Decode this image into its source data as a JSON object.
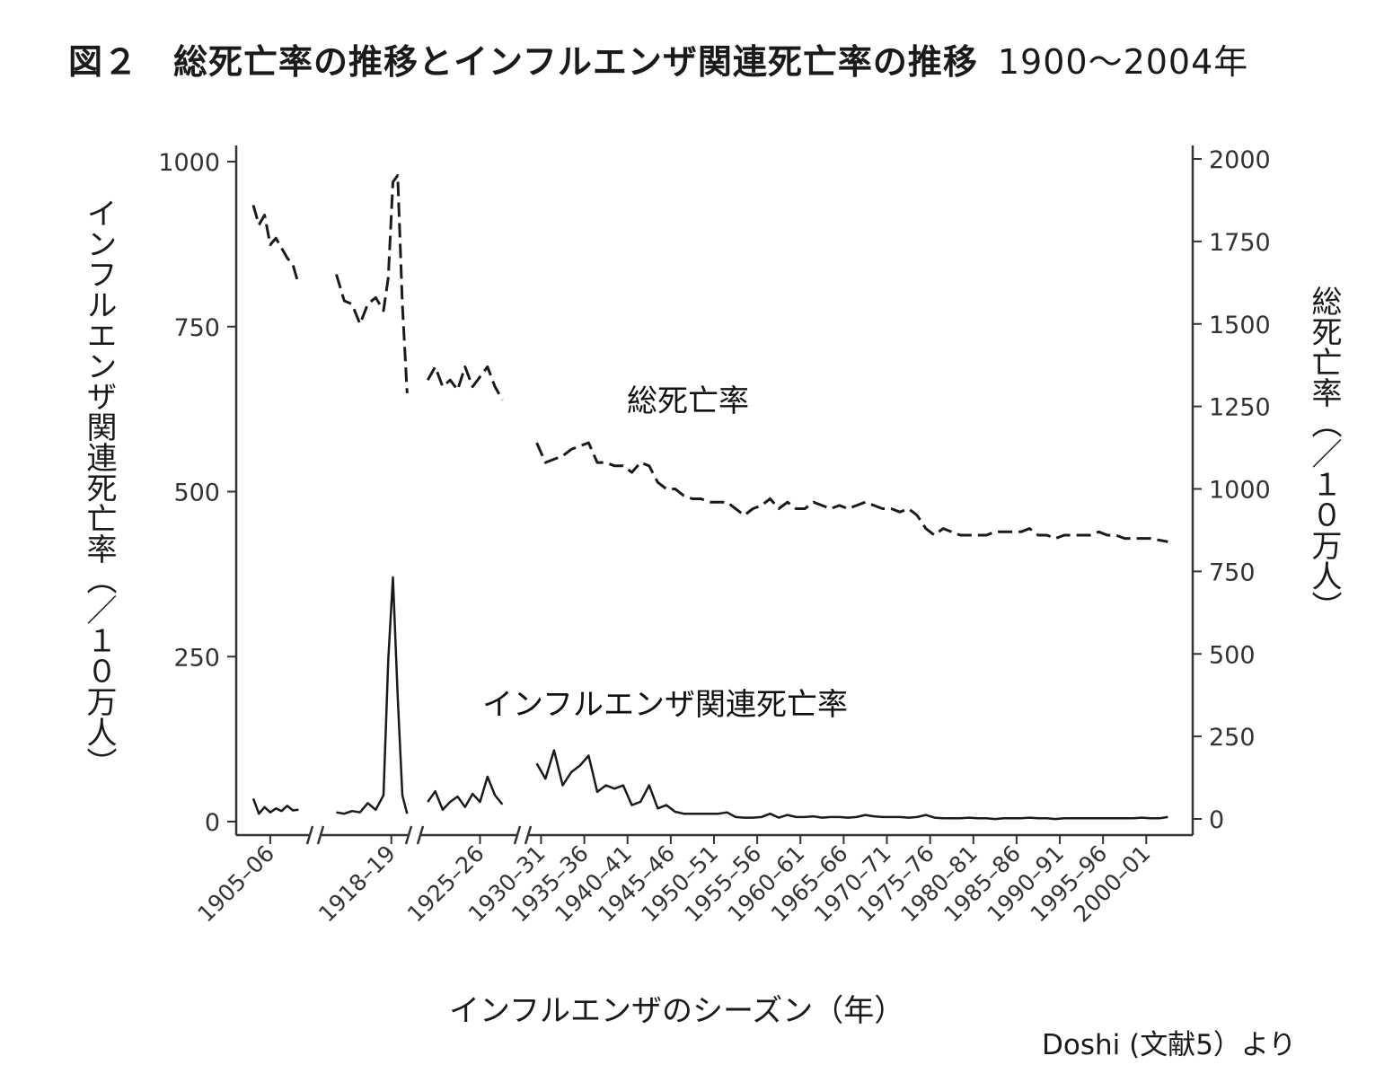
{
  "title": {
    "main": "図２　総死亡率の推移とインフルエンザ関連死亡率の推移",
    "range": "1900～2004年"
  },
  "source_note": "Doshi (文献5）より",
  "chart_data": {
    "type": "line",
    "xlabel": "インフルエンザのシーズン（年）",
    "ylabel_left": "インフルエンザ関連死亡率（／１０万人）",
    "ylabel_right": "総死亡率（／１０万人）",
    "ylim_left": [
      0,
      1000
    ],
    "ylim_right": [
      0,
      2000
    ],
    "yticks_left": [
      0,
      250,
      500,
      750,
      1000
    ],
    "yticks_right": [
      0,
      250,
      500,
      750,
      1000,
      1250,
      1500,
      1750,
      2000
    ],
    "x_tick_labels": [
      "1905–06",
      "1918–19",
      "1925–26",
      "1930–31",
      "1935–36",
      "1940–41",
      "1945–46",
      "1950–51",
      "1955–56",
      "1960–61",
      "1965–66",
      "1970–71",
      "1975–76",
      "1980–81",
      "1985–86",
      "1990–91",
      "1995–96",
      "2000–01"
    ],
    "x_tick_years": [
      1905,
      1918,
      1925,
      1930,
      1935,
      1940,
      1945,
      1950,
      1955,
      1960,
      1965,
      1970,
      1975,
      1980,
      1985,
      1990,
      1995,
      2000
    ],
    "axis_breaks": [
      "1909|1914",
      "1919|1922",
      "1928|1930"
    ],
    "series": [
      {
        "name": "総死亡率",
        "axis": "right",
        "style": "dashed",
        "segments": [
          {
            "x": [
              1904,
              1904.5,
              1905,
              1905.5,
              1906,
              1906.5,
              1907,
              1907.5,
              1908
            ],
            "y": [
              1860,
              1800,
              1830,
              1740,
              1760,
              1730,
              1700,
              1680,
              1620
            ]
          },
          {
            "x": [
              1915,
              1915.5,
              1916,
              1916.5,
              1917,
              1917.5,
              1918,
              1918.3,
              1918.6,
              1918.9,
              1919.2,
              1919.5
            ],
            "y": [
              1650,
              1570,
              1560,
              1500,
              1560,
              1580,
              1540,
              1640,
              1930,
              1950,
              1560,
              1290
            ]
          },
          {
            "x": [
              1922,
              1922.5,
              1923,
              1923.5,
              1924,
              1924.5,
              1925,
              1925.5,
              1926,
              1926.5,
              1927
            ],
            "y": [
              1330,
              1370,
              1310,
              1330,
              1300,
              1370,
              1310,
              1340,
              1370,
              1310,
              1270
            ]
          },
          {
            "x": [
              1930,
              1931,
              1932,
              1933,
              1934,
              1935,
              1936,
              1937,
              1938,
              1939,
              1940,
              1941,
              1942,
              1943,
              1944,
              1945,
              1946,
              1947,
              1948,
              1949,
              1950,
              1951,
              1952,
              1953,
              1954,
              1955,
              1956,
              1957,
              1958,
              1959,
              1960,
              1961,
              1962,
              1963,
              1964,
              1965,
              1966,
              1967,
              1968,
              1969,
              1970,
              1971,
              1972,
              1973,
              1974,
              1975,
              1976,
              1977,
              1978,
              1979,
              1980,
              1981,
              1982,
              1983,
              1984,
              1985,
              1986,
              1987,
              1988,
              1989,
              1990,
              1991,
              1992,
              1993,
              1994,
              1995,
              1996,
              1997,
              1998,
              1999,
              2000,
              2001,
              2002,
              2003
            ],
            "y": [
              1140,
              1080,
              1090,
              1100,
              1120,
              1130,
              1140,
              1080,
              1080,
              1070,
              1070,
              1050,
              1080,
              1070,
              1020,
              1000,
              1000,
              980,
              970,
              970,
              960,
              960,
              960,
              940,
              920,
              940,
              950,
              970,
              940,
              960,
              940,
              940,
              960,
              950,
              940,
              950,
              940,
              950,
              960,
              950,
              940,
              940,
              930,
              940,
              920,
              880,
              860,
              880,
              870,
              860,
              860,
              860,
              860,
              870,
              870,
              870,
              870,
              880,
              860,
              860,
              850,
              860,
              860,
              860,
              860,
              870,
              860,
              860,
              850,
              850,
              850,
              850,
              845,
              840
            ]
          }
        ]
      },
      {
        "name": "インフルエンザ関連死亡率",
        "axis": "left",
        "style": "solid",
        "segments": [
          {
            "x": [
              1904,
              1904.5,
              1905,
              1905.5,
              1906,
              1906.5,
              1907,
              1907.5,
              1908
            ],
            "y": [
              35,
              12,
              22,
              14,
              20,
              16,
              24,
              17,
              18
            ]
          },
          {
            "x": [
              1915,
              1915.5,
              1916,
              1916.5,
              1917,
              1917.5,
              1918,
              1918.3,
              1918.6,
              1918.9,
              1919.2,
              1919.5
            ],
            "y": [
              14,
              12,
              16,
              14,
              28,
              18,
              40,
              245,
              370,
              190,
              40,
              12
            ]
          },
          {
            "x": [
              1922,
              1922.5,
              1923,
              1923.5,
              1924,
              1924.5,
              1925,
              1925.5,
              1926,
              1926.5,
              1927
            ],
            "y": [
              30,
              46,
              18,
              30,
              38,
              22,
              42,
              30,
              68,
              40,
              26
            ]
          },
          {
            "x": [
              1930,
              1931,
              1932,
              1933,
              1934,
              1935,
              1936,
              1937,
              1938,
              1939,
              1940,
              1941,
              1942,
              1943,
              1944,
              1945,
              1946,
              1947,
              1948,
              1949,
              1950,
              1951,
              1952,
              1953,
              1954,
              1955,
              1956,
              1957,
              1958,
              1959,
              1960,
              1961,
              1962,
              1963,
              1964,
              1965,
              1966,
              1967,
              1968,
              1969,
              1970,
              1971,
              1972,
              1973,
              1974,
              1975,
              1976,
              1977,
              1978,
              1979,
              1980,
              1981,
              1982,
              1983,
              1984,
              1985,
              1986,
              1987,
              1988,
              1989,
              1990,
              1991,
              1992,
              1993,
              1994,
              1995,
              1996,
              1997,
              1998,
              1999,
              2000,
              2001,
              2002,
              2003
            ],
            "y": [
              88,
              65,
              108,
              55,
              75,
              85,
              100,
              45,
              55,
              50,
              55,
              25,
              30,
              55,
              20,
              25,
              15,
              12,
              12,
              12,
              12,
              12,
              14,
              7,
              6,
              6,
              7,
              12,
              6,
              10,
              7,
              7,
              8,
              6,
              7,
              7,
              6,
              7,
              10,
              8,
              7,
              7,
              7,
              6,
              7,
              10,
              6,
              5,
              5,
              5,
              6,
              5,
              5,
              4,
              5,
              5,
              5,
              6,
              5,
              5,
              4,
              5,
              5,
              5,
              5,
              5,
              5,
              5,
              5,
              5,
              6,
              5,
              5,
              7
            ]
          }
        ]
      }
    ],
    "series_labels": [
      "総死亡率",
      "インフルエンザ関連死亡率"
    ],
    "grid": false,
    "legend": "none"
  }
}
